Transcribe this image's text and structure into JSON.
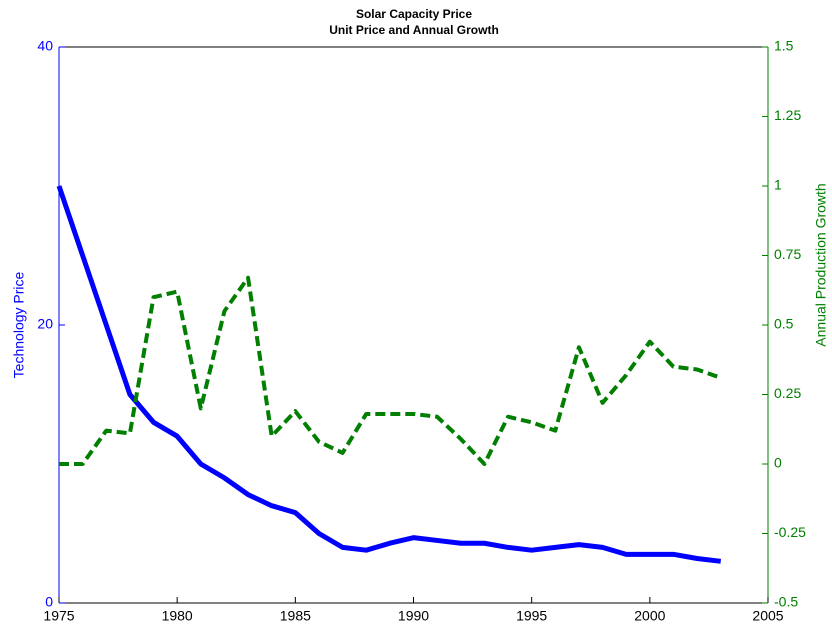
{
  "chart_data": {
    "type": "line",
    "title": [
      "Solar Capacity Price",
      "Unit Price and Annual Growth"
    ],
    "ylabel": "Technology Price",
    "y2label": "Annual Production Growth",
    "x": [
      1975,
      1976,
      1977,
      1978,
      1979,
      1980,
      1981,
      1982,
      1983,
      1984,
      1985,
      1986,
      1987,
      1988,
      1989,
      1990,
      1991,
      1992,
      1993,
      1994,
      1995,
      1996,
      1997,
      1998,
      1999,
      2000,
      2001,
      2002,
      2003
    ],
    "xlim": [
      1975,
      2005
    ],
    "xticks": [
      1975,
      1980,
      1985,
      1990,
      1995,
      2000,
      2005
    ],
    "ylim": [
      0,
      40
    ],
    "yticks": [
      0,
      20,
      40
    ],
    "ycolor": "#0000ff",
    "y2lim": [
      -0.5,
      1.5
    ],
    "y2ticks": [
      -0.5,
      -0.25,
      0,
      0.25,
      0.5,
      0.75,
      1,
      1.25,
      1.5
    ],
    "y2color": "#007f00",
    "series": [
      {
        "name": "Technology Price",
        "color": "#0000ff",
        "dash": "solid",
        "values": [
          30,
          25,
          20,
          15,
          13,
          12,
          10,
          9,
          7.8,
          7,
          6.5,
          5,
          4,
          3.8,
          4.3,
          4.7,
          4.5,
          4.3,
          4.3,
          4,
          3.8,
          4,
          4.2,
          4,
          3.5,
          3.5,
          3.5,
          3.2,
          3
        ]
      },
      {
        "name": "Annual Production Growth",
        "color": "#007f00",
        "dash": "dashed",
        "axis": "y2",
        "values": [
          0,
          0,
          0.12,
          0.11,
          0.6,
          0.62,
          0.2,
          0.55,
          0.67,
          0.1,
          0.19,
          0.08,
          0.04,
          0.18,
          0.18,
          0.18,
          0.17,
          0.09,
          0,
          0.17,
          0.15,
          0.12,
          0.42,
          0.22,
          0.32,
          0.44,
          0.35,
          0.34,
          0.31
        ]
      }
    ]
  }
}
